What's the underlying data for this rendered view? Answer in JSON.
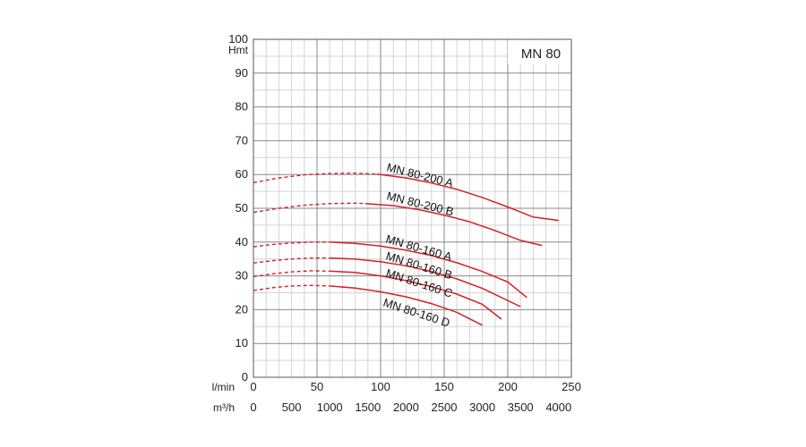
{
  "chart_data": {
    "type": "line",
    "title_box": "MN 80",
    "ylabel": "Hmt",
    "ylim": [
      0,
      100
    ],
    "yticks": [
      0,
      10,
      20,
      30,
      40,
      50,
      60,
      70,
      80,
      90,
      100
    ],
    "x_axes": [
      {
        "unit": "l/min",
        "range": [
          0,
          250
        ],
        "ticks": [
          0,
          50,
          100,
          150,
          200,
          250
        ]
      },
      {
        "unit": "m³/h",
        "range": [
          0,
          4166.7
        ],
        "ticks": [
          0,
          500,
          1000,
          1500,
          2000,
          2500,
          3000,
          3500,
          4000
        ]
      }
    ],
    "grid": true,
    "colors": {
      "curve": "#d42027",
      "major_grid": "#8a8a8a",
      "minor_grid": "#d4d4d4",
      "frame": "#555555"
    },
    "series": [
      {
        "name": "MN 80-200 A",
        "dashed": [
          [
            0,
            57.6
          ],
          [
            20,
            59.0
          ],
          [
            40,
            59.9
          ],
          [
            60,
            60.3
          ],
          [
            80,
            60.4
          ],
          [
            97,
            60.1
          ]
        ],
        "solid": [
          [
            97,
            60.1
          ],
          [
            120,
            59.0
          ],
          [
            140,
            57.5
          ],
          [
            160,
            55.6
          ],
          [
            180,
            53.2
          ],
          [
            200,
            50.4
          ],
          [
            220,
            47.4
          ],
          [
            240,
            46.4
          ]
        ]
      },
      {
        "name": "MN 80-200 B",
        "dashed": [
          [
            0,
            48.8
          ],
          [
            20,
            50.0
          ],
          [
            40,
            50.9
          ],
          [
            60,
            51.4
          ],
          [
            80,
            51.5
          ],
          [
            88,
            51.4
          ]
        ],
        "solid": [
          [
            88,
            51.4
          ],
          [
            110,
            50.8
          ],
          [
            130,
            49.6
          ],
          [
            150,
            48.0
          ],
          [
            170,
            46.0
          ],
          [
            190,
            43.4
          ],
          [
            210,
            40.5
          ],
          [
            227,
            39.0
          ]
        ]
      },
      {
        "name": "MN 80-160 A",
        "dashed": [
          [
            0,
            38.6
          ],
          [
            15,
            39.3
          ],
          [
            30,
            39.7
          ],
          [
            45,
            40.0
          ],
          [
            60,
            40.0
          ]
        ],
        "solid": [
          [
            60,
            40.0
          ],
          [
            80,
            39.6
          ],
          [
            100,
            38.8
          ],
          [
            120,
            37.6
          ],
          [
            140,
            36.0
          ],
          [
            160,
            33.9
          ],
          [
            180,
            31.3
          ],
          [
            200,
            28.2
          ],
          [
            215,
            23.6
          ]
        ]
      },
      {
        "name": "MN 80-160 B",
        "dashed": [
          [
            0,
            33.8
          ],
          [
            15,
            34.5
          ],
          [
            30,
            35.0
          ],
          [
            45,
            35.3
          ],
          [
            60,
            35.3
          ]
        ],
        "solid": [
          [
            60,
            35.3
          ],
          [
            80,
            35.0
          ],
          [
            100,
            34.2
          ],
          [
            120,
            33.0
          ],
          [
            140,
            31.3
          ],
          [
            160,
            29.1
          ],
          [
            180,
            26.3
          ],
          [
            210,
            20.9
          ]
        ]
      },
      {
        "name": "MN 80-160 C",
        "dashed": [
          [
            0,
            29.8
          ],
          [
            15,
            30.6
          ],
          [
            30,
            31.2
          ],
          [
            45,
            31.5
          ],
          [
            60,
            31.4
          ]
        ],
        "solid": [
          [
            60,
            31.4
          ],
          [
            80,
            31.0
          ],
          [
            100,
            30.0
          ],
          [
            120,
            28.6
          ],
          [
            140,
            26.8
          ],
          [
            160,
            24.6
          ],
          [
            180,
            21.6
          ],
          [
            195,
            17.2
          ]
        ]
      },
      {
        "name": "MN 80-160 D",
        "dashed": [
          [
            0,
            25.7
          ],
          [
            15,
            26.5
          ],
          [
            30,
            27.0
          ],
          [
            45,
            27.2
          ],
          [
            60,
            27.0
          ]
        ],
        "solid": [
          [
            60,
            27.0
          ],
          [
            80,
            26.4
          ],
          [
            100,
            25.3
          ],
          [
            120,
            23.8
          ],
          [
            140,
            21.8
          ],
          [
            160,
            19.2
          ],
          [
            180,
            15.4
          ]
        ]
      }
    ]
  }
}
